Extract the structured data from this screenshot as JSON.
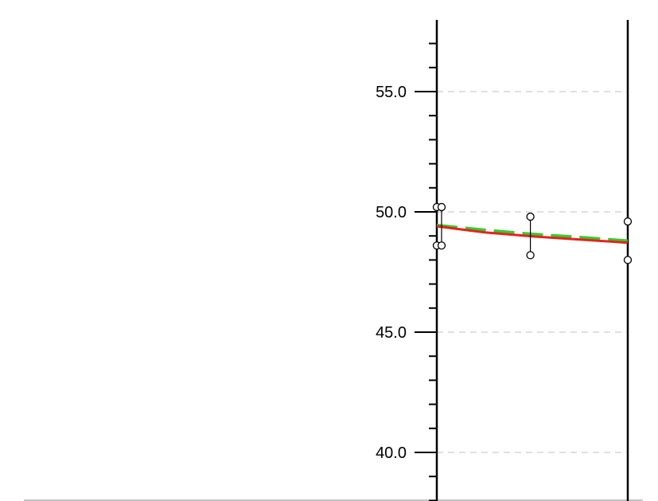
{
  "chart_data": {
    "type": "scatter",
    "title": "",
    "xlabel": "",
    "ylabel": "",
    "ylim": [
      38.0,
      58.0
    ],
    "xlim": [
      0,
      1
    ],
    "y_major_ticks": [
      40.0,
      45.0,
      50.0,
      55.0
    ],
    "y_tick_labels": [
      "40.0",
      "45.0",
      "50.0",
      "55.0"
    ],
    "y_minor_step": 1.0,
    "grid": "horizontal dashed at major ticks",
    "legend": "none",
    "points": [
      {
        "x": 0.0,
        "y": 50.2
      },
      {
        "x": 0.0,
        "y": 48.6
      },
      {
        "x": 0.025,
        "y": 50.2
      },
      {
        "x": 0.025,
        "y": 48.6
      },
      {
        "x": 0.49,
        "y": 49.8
      },
      {
        "x": 0.49,
        "y": 48.2
      },
      {
        "x": 1.0,
        "y": 49.6
      },
      {
        "x": 1.0,
        "y": 48.0
      }
    ],
    "error_bars": [
      {
        "x": 0.025,
        "low": 48.6,
        "high": 50.2
      },
      {
        "x": 0.49,
        "low": 48.2,
        "high": 49.8
      }
    ],
    "series": [
      {
        "style": "solid",
        "color": "#e8221a",
        "x": [
          0.0,
          0.25,
          0.5,
          0.75,
          1.0
        ],
        "y": [
          49.4,
          49.15,
          48.98,
          48.85,
          48.72
        ]
      },
      {
        "style": "dashed",
        "color": "#33cc33",
        "x": [
          0.0,
          0.25,
          0.5,
          0.75,
          1.0
        ],
        "y": [
          49.45,
          49.25,
          49.08,
          48.95,
          48.8
        ]
      }
    ],
    "colors": {
      "axis": "#000000",
      "grid": "#d6d6d6",
      "marker": "#000000"
    }
  }
}
